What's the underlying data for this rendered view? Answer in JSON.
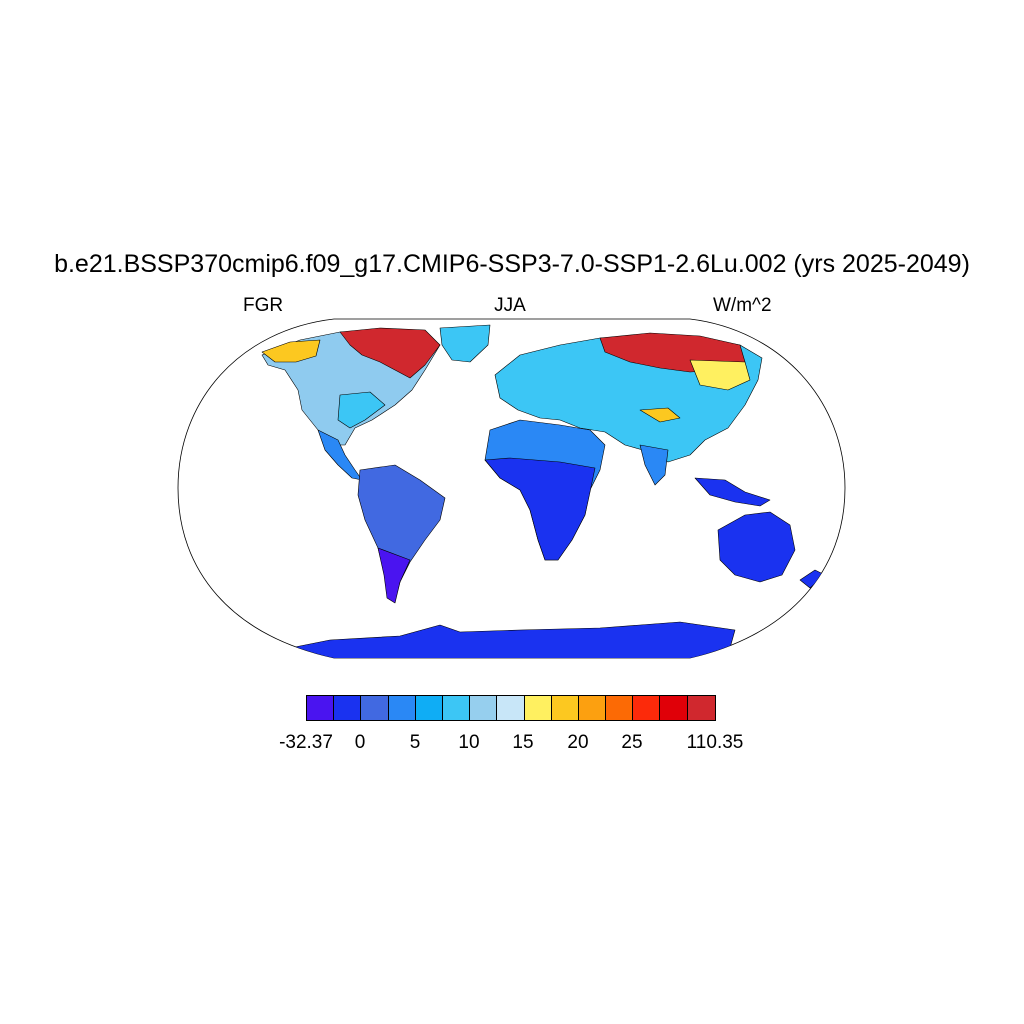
{
  "title": "b.e21.BSSP370cmip6.f09_g17.CMIP6-SSP3-7.0-SSP1-2.6Lu.002 (yrs 2025-2049)",
  "left_label": "FGR",
  "center_label": "JJA",
  "right_label": "W/m^2",
  "colorbar": {
    "colors": [
      "#4a14f0",
      "#1a32f0",
      "#4169e1",
      "#2a88f5",
      "#0fadf5",
      "#3cc6f5",
      "#96cfee",
      "#c8e6f8",
      "#fff060",
      "#fcc820",
      "#fca010",
      "#fc6a05",
      "#fc2a0a",
      "#e00008",
      "#d0282e"
    ],
    "tick_labels": [
      "-32.37",
      "0",
      "5",
      "10",
      "15",
      "20",
      "25",
      "110.35"
    ]
  },
  "legend_colors": {
    "ocean": "#ffffff",
    "coastline": "#000000"
  }
}
